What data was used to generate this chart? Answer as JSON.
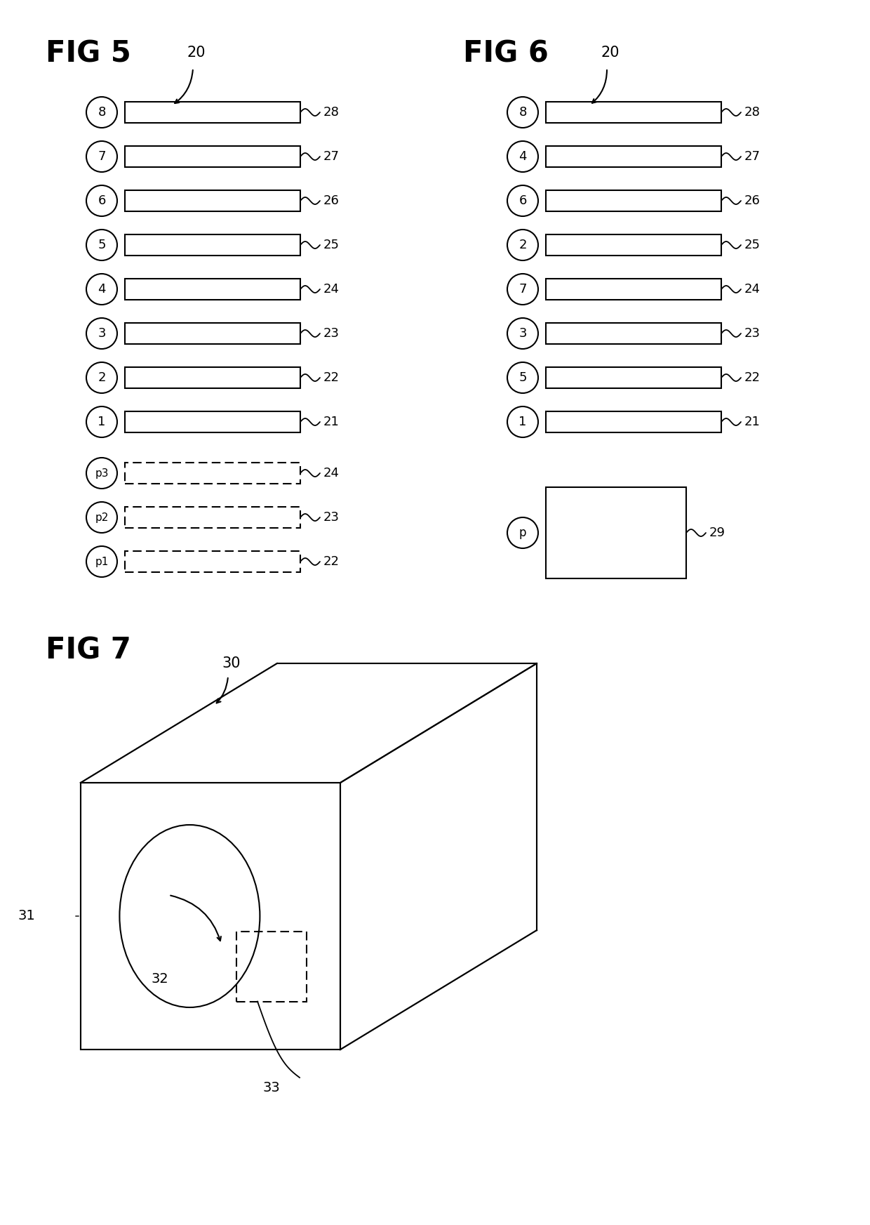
{
  "bg_color": "#ffffff",
  "fig5_title": "FIG 5",
  "fig6_title": "FIG 6",
  "fig7_title": "FIG 7",
  "fig5_label": "20",
  "fig6_label": "20",
  "fig7_label": "30",
  "fig5_solid_rows": [
    {
      "circle_label": "8",
      "ref": "28"
    },
    {
      "circle_label": "7",
      "ref": "27"
    },
    {
      "circle_label": "6",
      "ref": "26"
    },
    {
      "circle_label": "5",
      "ref": "25"
    },
    {
      "circle_label": "4",
      "ref": "24"
    },
    {
      "circle_label": "3",
      "ref": "23"
    },
    {
      "circle_label": "2",
      "ref": "22"
    },
    {
      "circle_label": "1",
      "ref": "21"
    }
  ],
  "fig5_dashed_rows": [
    {
      "circle_label": "p3",
      "ref": "24"
    },
    {
      "circle_label": "p2",
      "ref": "23"
    },
    {
      "circle_label": "p1",
      "ref": "22"
    }
  ],
  "fig6_solid_rows": [
    {
      "circle_label": "8",
      "ref": "28"
    },
    {
      "circle_label": "4",
      "ref": "27"
    },
    {
      "circle_label": "6",
      "ref": "26"
    },
    {
      "circle_label": "2",
      "ref": "25"
    },
    {
      "circle_label": "7",
      "ref": "24"
    },
    {
      "circle_label": "3",
      "ref": "23"
    },
    {
      "circle_label": "5",
      "ref": "22"
    },
    {
      "circle_label": "1",
      "ref": "21"
    }
  ],
  "fig6_box_label": "p",
  "fig6_box_ref": "29",
  "fig7_ref31": "31",
  "fig7_ref32": "32",
  "fig7_ref33": "33"
}
